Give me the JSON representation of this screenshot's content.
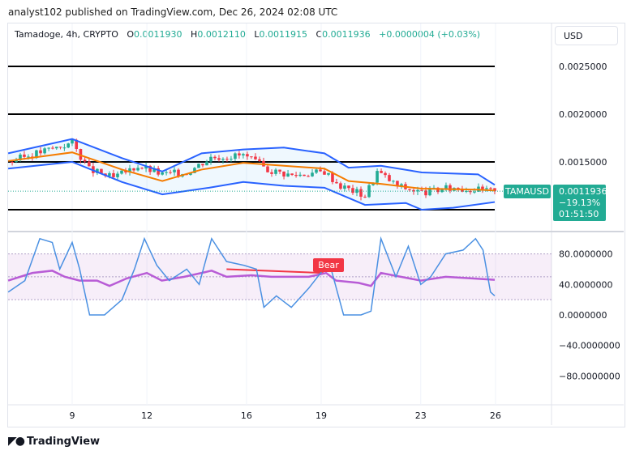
{
  "header": {
    "published": "analyst102 published on TradingView.com, Dec 26, 2024 02:08 UTC"
  },
  "legend": {
    "symbol": "Tamadoge, 4h, CRYPTO",
    "o_label": "O",
    "o": "0.0011930",
    "h_label": "H",
    "h": "0.0012110",
    "l_label": "L",
    "l": "0.0011915",
    "c_label": "C",
    "c": "0.0011936",
    "change": "+0.0000004 (+0.03%)"
  },
  "currency_button": "USD",
  "price_tag": {
    "symbol": "TAMAUSD",
    "price": "0.0011936",
    "change": "−19.13%",
    "countdown": "01:51:50"
  },
  "footer": {
    "logo": "TradingView"
  },
  "colors": {
    "up": "#22ab94",
    "down": "#f23645",
    "band": "#2962ff",
    "basis": "#f57c00",
    "stoch": "#4a90e2",
    "rsi": "#b85cd6",
    "bear": "#f23645"
  },
  "chart_data": [
    {
      "type": "candlestick",
      "pane": "price",
      "x_unit": "day of December 2024",
      "x_ticks": [
        "9",
        "12",
        "16",
        "19",
        "23",
        "26"
      ],
      "x_tick_values": [
        9,
        12,
        16,
        19,
        23,
        26
      ],
      "y_ticks": [
        "0.0025000",
        "0.0020000",
        "0.0015000"
      ],
      "y_tick_values": [
        0.0025,
        0.002,
        0.0015
      ],
      "horizontal_lines": [
        0.0025,
        0.002,
        0.0015,
        0.001
      ],
      "close_path": [
        [
          6.43,
          0.0015
        ],
        [
          7.4,
          0.00158
        ],
        [
          8.06,
          0.00163
        ],
        [
          9.0,
          0.0017
        ],
        [
          9.68,
          0.00142
        ],
        [
          10.66,
          0.00133
        ],
        [
          11.64,
          0.00146
        ],
        [
          12.62,
          0.00137
        ],
        [
          13.59,
          0.00139
        ],
        [
          14.57,
          0.00155
        ],
        [
          15.87,
          0.00157
        ],
        [
          16.85,
          0.00142
        ],
        [
          17.83,
          0.00136
        ],
        [
          19.13,
          0.0014
        ],
        [
          19.78,
          0.00125
        ],
        [
          20.76,
          0.00115
        ],
        [
          21.25,
          0.0014
        ],
        [
          22.06,
          0.00125
        ],
        [
          23.04,
          0.00118
        ],
        [
          24.34,
          0.00123
        ],
        [
          25.97,
          0.0011936
        ]
      ],
      "bollinger_upper": [
        [
          6.43,
          0.00159
        ],
        [
          9.0,
          0.00174
        ],
        [
          11.0,
          0.00154
        ],
        [
          12.62,
          0.0014
        ],
        [
          14.2,
          0.00159
        ],
        [
          15.87,
          0.00163
        ],
        [
          17.5,
          0.00165
        ],
        [
          19.13,
          0.00159
        ],
        [
          20.1,
          0.00144
        ],
        [
          21.4,
          0.00146
        ],
        [
          23.04,
          0.00139
        ],
        [
          25.3,
          0.00137
        ],
        [
          25.97,
          0.00126
        ]
      ],
      "bollinger_basis": [
        [
          6.43,
          0.00151
        ],
        [
          9.0,
          0.0016
        ],
        [
          11.0,
          0.00142
        ],
        [
          12.62,
          0.0013
        ],
        [
          14.2,
          0.00142
        ],
        [
          15.87,
          0.00149
        ],
        [
          17.5,
          0.00146
        ],
        [
          19.13,
          0.00143
        ],
        [
          20.1,
          0.0013
        ],
        [
          21.4,
          0.00127
        ],
        [
          23.04,
          0.00122
        ],
        [
          25.3,
          0.00121
        ],
        [
          25.97,
          0.0012
        ]
      ],
      "bollinger_lower": [
        [
          6.43,
          0.00143
        ],
        [
          9.0,
          0.0015
        ],
        [
          11.0,
          0.00129
        ],
        [
          12.62,
          0.00116
        ],
        [
          14.5,
          0.00123
        ],
        [
          15.87,
          0.00129
        ],
        [
          17.5,
          0.00125
        ],
        [
          19.13,
          0.00123
        ],
        [
          20.76,
          0.00105
        ],
        [
          22.4,
          0.00107
        ],
        [
          23.04,
          0.001
        ],
        [
          24.3,
          0.00102
        ],
        [
          25.97,
          0.00108
        ]
      ],
      "last_price": 0.0011936
    },
    {
      "type": "line",
      "pane": "oscillator",
      "y_ticks": [
        "80.0000000",
        "40.0000000",
        "0.0000000",
        "−40.0000000",
        "−80.0000000"
      ],
      "y_tick_values": [
        80,
        40,
        0,
        -40,
        -80
      ],
      "band": [
        20,
        80
      ],
      "annotation": "Bear",
      "series": [
        {
          "key": "stoch",
          "points": [
            [
              6.43,
              30
            ],
            [
              7.1,
              45
            ],
            [
              7.7,
              100
            ],
            [
              8.2,
              95
            ],
            [
              8.5,
              60
            ],
            [
              9.0,
              95
            ],
            [
              9.3,
              60
            ],
            [
              9.7,
              0
            ],
            [
              10.3,
              0
            ],
            [
              11.0,
              20
            ],
            [
              11.5,
              60
            ],
            [
              11.9,
              100
            ],
            [
              12.4,
              65
            ],
            [
              12.9,
              45
            ],
            [
              13.6,
              60
            ],
            [
              14.1,
              40
            ],
            [
              14.6,
              100
            ],
            [
              15.2,
              70
            ],
            [
              15.9,
              65
            ],
            [
              16.4,
              60
            ],
            [
              16.7,
              10
            ],
            [
              17.2,
              25
            ],
            [
              17.8,
              10
            ],
            [
              18.5,
              35
            ],
            [
              19.1,
              60
            ],
            [
              19.4,
              60
            ],
            [
              19.9,
              0
            ],
            [
              20.6,
              0
            ],
            [
              21.0,
              5
            ],
            [
              21.4,
              100
            ],
            [
              22.0,
              50
            ],
            [
              22.5,
              90
            ],
            [
              23.0,
              40
            ],
            [
              23.4,
              50
            ],
            [
              24.0,
              80
            ],
            [
              24.7,
              85
            ],
            [
              25.2,
              100
            ],
            [
              25.5,
              85
            ],
            [
              25.8,
              30
            ],
            [
              25.97,
              25
            ]
          ]
        },
        {
          "key": "rsi",
          "points": [
            [
              6.43,
              45
            ],
            [
              7.4,
              55
            ],
            [
              8.2,
              58
            ],
            [
              8.7,
              50
            ],
            [
              9.3,
              45
            ],
            [
              10.0,
              45
            ],
            [
              10.5,
              38
            ],
            [
              11.2,
              48
            ],
            [
              12.0,
              55
            ],
            [
              12.6,
              45
            ],
            [
              13.5,
              50
            ],
            [
              14.6,
              58
            ],
            [
              15.2,
              50
            ],
            [
              16.2,
              52
            ],
            [
              17.0,
              50
            ],
            [
              18.5,
              50
            ],
            [
              19.2,
              55
            ],
            [
              19.6,
              45
            ],
            [
              20.5,
              42
            ],
            [
              21.0,
              38
            ],
            [
              21.4,
              55
            ],
            [
              22.2,
              50
            ],
            [
              23.0,
              45
            ],
            [
              24.0,
              50
            ],
            [
              25.0,
              48
            ],
            [
              25.97,
              46
            ]
          ]
        }
      ]
    }
  ]
}
